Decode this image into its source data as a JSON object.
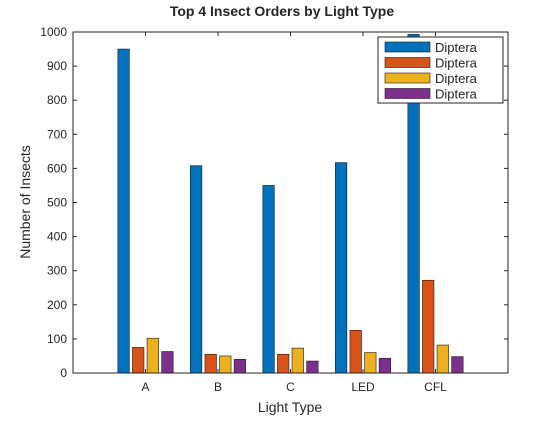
{
  "chart_data": {
    "type": "bar",
    "title": "Top 4 Insect Orders by Light Type",
    "xlabel": "Light Type",
    "ylabel": "Number of Insects",
    "categories": [
      "A",
      "B",
      "C",
      "LED",
      "CFL"
    ],
    "ylim": [
      0,
      1000
    ],
    "yticks": [
      0,
      100,
      200,
      300,
      400,
      500,
      600,
      700,
      800,
      900,
      1000
    ],
    "grid": false,
    "legend_position": "top-right",
    "series": [
      {
        "name": "Diptera",
        "color": "#0072BD",
        "values": [
          950,
          608,
          550,
          617,
          993
        ]
      },
      {
        "name": "Diptera",
        "color": "#D95319",
        "values": [
          75,
          55,
          55,
          125,
          272
        ]
      },
      {
        "name": "Diptera",
        "color": "#EDB120",
        "values": [
          102,
          50,
          73,
          60,
          82
        ]
      },
      {
        "name": "Diptera",
        "color": "#7E2F8E",
        "values": [
          63,
          40,
          35,
          43,
          48
        ]
      }
    ]
  }
}
